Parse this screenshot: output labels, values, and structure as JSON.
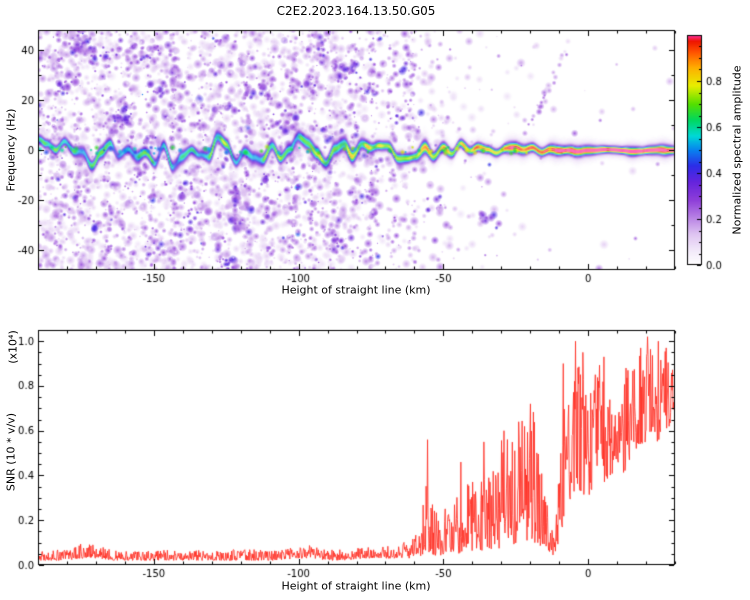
{
  "colorbar": {
    "label": "Normalized spectral amplitude",
    "range": [
      0,
      1
    ],
    "ticks": [
      0,
      0.2,
      0.4,
      0.6,
      0.8
    ],
    "tick_labels": [
      "0.0",
      "0.2",
      "0.4",
      "0.6",
      "0.8"
    ],
    "stops": [
      [
        0.0,
        "#ffffff"
      ],
      [
        0.06,
        "#f3eafa"
      ],
      [
        0.13,
        "#e0c6f2"
      ],
      [
        0.2,
        "#bb86e6"
      ],
      [
        0.28,
        "#8f3fd9"
      ],
      [
        0.36,
        "#6524dd"
      ],
      [
        0.43,
        "#2d2de8"
      ],
      [
        0.5,
        "#0884f0"
      ],
      [
        0.56,
        "#00d8d8"
      ],
      [
        0.63,
        "#00d860"
      ],
      [
        0.7,
        "#55e000"
      ],
      [
        0.78,
        "#e8ef00"
      ],
      [
        0.86,
        "#ffae00"
      ],
      [
        0.93,
        "#ff4f00"
      ],
      [
        0.975,
        "#ee1500"
      ],
      [
        1.0,
        "#ff2fa0"
      ]
    ]
  },
  "chart_data": [
    {
      "type": "heatmap",
      "title": "C2E2.2023.164.13.50.G05",
      "xlabel": "Height of straight line (km)",
      "ylabel": "Frequency (Hz)",
      "xlim": [
        -190,
        30
      ],
      "ylim": [
        -48,
        48
      ],
      "xticks": [
        -150,
        -100,
        -50,
        0
      ],
      "xtick_labels": [
        "-150",
        "-100",
        "-50",
        "0"
      ],
      "xminor": 10,
      "yticks": [
        -40,
        -20,
        0,
        20,
        40
      ],
      "ytick_labels": [
        "-40",
        "-20",
        "0",
        "20",
        "40"
      ],
      "yminor": 10,
      "description": "Doppler spectrogram: a high-amplitude echo band near 0 Hz spans all heights; its normalized amplitude grows from ~0.6 (blue/cyan/green) at -190 km to ~1.0 (red core, dashed look) above -20 km; diffuse purple speckle noise covers all frequencies, densest left of -80 km and fading toward the right; faint vertical noise streaks on the left half and a faint diagonal trace rising toward +45 Hz near -10 km.",
      "band_columns": [
        "height_km",
        "amplitude",
        "half_width_px",
        "meander_hz"
      ],
      "band": [
        [
          -190,
          0.58,
          5.5,
          3.5
        ],
        [
          -170,
          0.6,
          6,
          4
        ],
        [
          -150,
          0.6,
          6,
          4.2
        ],
        [
          -130,
          0.63,
          6,
          4.4
        ],
        [
          -110,
          0.66,
          6,
          4
        ],
        [
          -95,
          0.68,
          6,
          3.5
        ],
        [
          -80,
          0.72,
          5.5,
          3.2
        ],
        [
          -65,
          0.74,
          5.5,
          3
        ],
        [
          -50,
          0.78,
          5,
          2.5
        ],
        [
          -40,
          0.8,
          5,
          2.2
        ],
        [
          -30,
          0.84,
          4.6,
          1.8
        ],
        [
          -22,
          0.88,
          4.2,
          1.2
        ],
        [
          -16,
          0.93,
          4,
          0.8
        ],
        [
          -10,
          0.96,
          3.8,
          0.5
        ],
        [
          0,
          0.97,
          3.8,
          0.4
        ],
        [
          10,
          0.96,
          3.8,
          0.4
        ],
        [
          20,
          0.97,
          3.8,
          0.4
        ],
        [
          30,
          0.96,
          3.8,
          0.4
        ]
      ],
      "noise_density_columns": [
        "height_km",
        "density"
      ],
      "noise_density": [
        [
          -190,
          0.92
        ],
        [
          -170,
          0.9
        ],
        [
          -150,
          0.88
        ],
        [
          -130,
          0.85
        ],
        [
          -110,
          0.8
        ],
        [
          -95,
          0.72
        ],
        [
          -85,
          0.6
        ],
        [
          -75,
          0.45
        ],
        [
          -65,
          0.32
        ],
        [
          -55,
          0.22
        ],
        [
          -45,
          0.14
        ],
        [
          -35,
          0.08
        ],
        [
          -25,
          0.05
        ],
        [
          -15,
          0.03
        ],
        [
          0,
          0.02
        ],
        [
          30,
          0.015
        ]
      ],
      "streaks": [
        -183,
        -176,
        -166,
        -158,
        -150,
        -143,
        -134,
        -127,
        -118,
        -110,
        -102,
        -95,
        -88,
        -81,
        -74,
        -68,
        -61
      ],
      "diagonal": {
        "x0": -22,
        "f0": 5,
        "x1": -6,
        "f1": 44,
        "count": 26
      }
    },
    {
      "type": "line",
      "xlabel": "Height of straight line (km)",
      "ylabel": "SNR (10 * v/v)",
      "scale_note": "(x10⁴)",
      "color": "#ff2a1e",
      "xlim": [
        -190,
        30
      ],
      "ylim": [
        0,
        1.05
      ],
      "xticks": [
        -150,
        -100,
        -50,
        0
      ],
      "xtick_labels": [
        "-150",
        "-100",
        "-50",
        "0"
      ],
      "xminor": 10,
      "yticks": [
        0,
        0.2,
        0.4,
        0.6,
        0.8,
        1
      ],
      "ytick_labels": [
        "0.0",
        "0.2",
        "0.4",
        "0.6",
        "0.8",
        "1.0"
      ],
      "yminor": 0.05,
      "envelope_columns": [
        "height_km",
        "min_snr",
        "max_snr"
      ],
      "envelope": [
        [
          -190,
          0.02,
          0.06
        ],
        [
          -181,
          0.02,
          0.07
        ],
        [
          -174,
          0.03,
          0.1
        ],
        [
          -169,
          0.03,
          0.09
        ],
        [
          -164,
          0.02,
          0.07
        ],
        [
          -156,
          0.02,
          0.06
        ],
        [
          -148,
          0.02,
          0.07
        ],
        [
          -140,
          0.02,
          0.06
        ],
        [
          -132,
          0.02,
          0.07
        ],
        [
          -124,
          0.02,
          0.07
        ],
        [
          -116,
          0.02,
          0.07
        ],
        [
          -108,
          0.02,
          0.07
        ],
        [
          -100,
          0.03,
          0.08
        ],
        [
          -95,
          0.03,
          0.09
        ],
        [
          -90,
          0.02,
          0.07
        ],
        [
          -84,
          0.02,
          0.07
        ],
        [
          -78,
          0.03,
          0.08
        ],
        [
          -72,
          0.03,
          0.08
        ],
        [
          -66,
          0.03,
          0.09
        ],
        [
          -62,
          0.03,
          0.12
        ],
        [
          -58,
          0.04,
          0.18
        ],
        [
          -55,
          0.05,
          0.45
        ],
        [
          -52,
          0.04,
          0.2
        ],
        [
          -49,
          0.05,
          0.26
        ],
        [
          -46,
          0.05,
          0.3
        ],
        [
          -43,
          0.05,
          0.34
        ],
        [
          -40,
          0.06,
          0.4
        ],
        [
          -37,
          0.06,
          0.45
        ],
        [
          -34,
          0.07,
          0.5
        ],
        [
          -31,
          0.07,
          0.55
        ],
        [
          -28,
          0.08,
          0.58
        ],
        [
          -25,
          0.09,
          0.62
        ],
        [
          -22,
          0.1,
          0.66
        ],
        [
          -19,
          0.1,
          0.7
        ],
        [
          -17,
          0.09,
          0.62
        ],
        [
          -15,
          0.07,
          0.45
        ],
        [
          -13,
          0.05,
          0.22
        ],
        [
          -11.5,
          0.04,
          0.12
        ],
        [
          -10,
          0.1,
          0.45
        ],
        [
          -8,
          0.2,
          0.75
        ],
        [
          -6,
          0.3,
          0.92
        ],
        [
          -4,
          0.35,
          1.0
        ],
        [
          -2,
          0.32,
          0.88
        ],
        [
          0,
          0.3,
          0.8
        ],
        [
          2,
          0.35,
          0.85
        ],
        [
          4,
          0.4,
          0.9
        ],
        [
          6,
          0.36,
          0.82
        ],
        [
          8,
          0.4,
          0.72
        ],
        [
          10,
          0.45,
          0.66
        ],
        [
          12,
          0.4,
          0.82
        ],
        [
          14,
          0.45,
          0.88
        ],
        [
          16,
          0.5,
          0.9
        ],
        [
          18,
          0.5,
          0.95
        ],
        [
          20,
          0.55,
          1.0
        ],
        [
          22,
          0.6,
          0.96
        ],
        [
          24,
          0.55,
          1.0
        ],
        [
          26,
          0.6,
          0.96
        ],
        [
          28,
          0.62,
          0.95
        ],
        [
          30,
          0.7,
          0.95
        ]
      ],
      "spikes": [
        [
          -171,
          0.09
        ],
        [
          -55.4,
          0.56
        ],
        [
          -44,
          0.46
        ],
        [
          -36,
          0.55
        ],
        [
          -29,
          0.6
        ],
        [
          -24,
          0.64
        ],
        [
          -20,
          0.72
        ],
        [
          -8.6,
          0.9
        ],
        [
          -4.4,
          1.0
        ],
        [
          -1.8,
          0.95
        ],
        [
          5.4,
          0.93
        ],
        [
          13,
          0.88
        ],
        [
          18.2,
          0.97
        ],
        [
          20.6,
          1.02
        ],
        [
          24.2,
          1.0
        ],
        [
          27,
          0.97
        ]
      ]
    }
  ]
}
